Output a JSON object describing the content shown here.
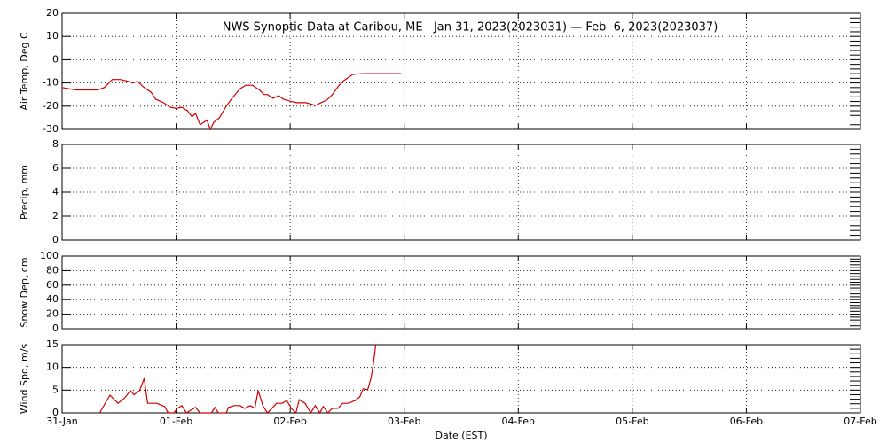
{
  "chart_data": [
    {
      "type": "line",
      "title": "NWS Synoptic Data at Caribou, ME   Jan 31, 2023(2023031) — Feb  6, 2023(2023037)",
      "ylabel": "Air Temp, Deg C",
      "color": "#cc0000",
      "grid": true,
      "xlim": [
        0,
        7
      ],
      "xticks": [
        0,
        1,
        2,
        3,
        4,
        5,
        6,
        7
      ],
      "ylim": [
        -30,
        20
      ],
      "yticks": [
        -30,
        -20,
        -10,
        0,
        10,
        20
      ],
      "x": [
        0,
        0.12,
        0.31,
        0.37,
        0.44,
        0.51,
        0.58,
        0.62,
        0.66,
        0.72,
        0.78,
        0.82,
        0.89,
        0.95,
        1.0,
        1.05,
        1.1,
        1.14,
        1.17,
        1.21,
        1.27,
        1.3,
        1.33,
        1.38,
        1.44,
        1.49,
        1.56,
        1.61,
        1.67,
        1.73,
        1.77,
        1.8,
        1.85,
        1.9,
        1.94,
        2.01,
        2.06,
        2.14,
        2.22,
        2.27,
        2.32,
        2.37,
        2.43,
        2.47,
        2.55,
        2.64,
        2.97
      ],
      "values": [
        -12,
        -13,
        -13,
        -12,
        -8.5,
        -8.5,
        -9.3,
        -10,
        -9.3,
        -12,
        -14,
        -17,
        -18.5,
        -20.5,
        -21,
        -20.5,
        -22,
        -24.6,
        -23,
        -28,
        -26,
        -30,
        -27,
        -25,
        -20,
        -16.6,
        -12.5,
        -11,
        -11,
        -13,
        -15,
        -15,
        -16.6,
        -15.5,
        -17,
        -18,
        -18.5,
        -18.5,
        -19.7,
        -18.5,
        -17.4,
        -15,
        -11,
        -9,
        -6.3,
        -6,
        -6
      ]
    },
    {
      "type": "line",
      "ylabel": "Precip, mm",
      "grid": true,
      "xlim": [
        0,
        7
      ],
      "xticks": [
        0,
        1,
        2,
        3,
        4,
        5,
        6,
        7
      ],
      "ylim": [
        0,
        8
      ],
      "yticks": [
        0,
        2,
        4,
        6,
        8
      ]
    },
    {
      "type": "line",
      "ylabel": "Snow Dep, cm",
      "grid": true,
      "xlim": [
        0,
        7
      ],
      "xticks": [
        0,
        1,
        2,
        3,
        4,
        5,
        6,
        7
      ],
      "ylim": [
        0,
        100
      ],
      "yticks": [
        0,
        20,
        40,
        60,
        80,
        100
      ]
    },
    {
      "type": "line",
      "ylabel": "Wind Spd, m/s",
      "xlabel": "Date (EST)",
      "color": "#cc0000",
      "grid": true,
      "xlim": [
        0,
        7
      ],
      "xticks": [
        {
          "value": 0,
          "label": "31-Jan"
        },
        {
          "value": 1,
          "label": "01-Feb"
        },
        {
          "value": 2,
          "label": "02-Feb"
        },
        {
          "value": 3,
          "label": "03-Feb"
        },
        {
          "value": 4,
          "label": "04-Feb"
        },
        {
          "value": 5,
          "label": "05-Feb"
        },
        {
          "value": 6,
          "label": "06-Feb"
        },
        {
          "value": 7,
          "label": "07-Feb"
        }
      ],
      "ylim": [
        0,
        15
      ],
      "yticks": [
        0,
        5,
        10,
        15
      ],
      "x": [
        0.33,
        0.42,
        0.49,
        0.55,
        0.6,
        0.63,
        0.68,
        0.72,
        0.75,
        0.83,
        0.9,
        0.93,
        0.98,
        1.01,
        1.05,
        1.09,
        1.17,
        1.21,
        1.31,
        1.34,
        1.37,
        1.44,
        1.46,
        1.51,
        1.56,
        1.6,
        1.65,
        1.69,
        1.72,
        1.76,
        1.8,
        1.84,
        1.88,
        1.93,
        1.97,
        2.01,
        2.05,
        2.08,
        2.13,
        2.18,
        2.22,
        2.26,
        2.29,
        2.33,
        2.37,
        2.42,
        2.46,
        2.51,
        2.57,
        2.61,
        2.64,
        2.68,
        2.71,
        2.73,
        2.75
      ],
      "values": [
        0,
        3.9,
        2.1,
        3.3,
        4.9,
        4,
        4.9,
        7.6,
        2.1,
        2.1,
        1.4,
        0,
        0,
        1,
        1.6,
        0,
        1.2,
        0,
        0,
        1.2,
        0,
        0,
        1.2,
        1.6,
        1.6,
        1,
        1.6,
        1,
        4.9,
        1.6,
        0,
        1,
        2.1,
        2.1,
        2.7,
        1,
        0,
        2.9,
        2.1,
        0,
        1.6,
        0,
        1.4,
        0,
        1,
        1,
        2.1,
        2.1,
        2.7,
        3.5,
        5.3,
        5.1,
        7.8,
        10.9,
        15
      ]
    }
  ]
}
